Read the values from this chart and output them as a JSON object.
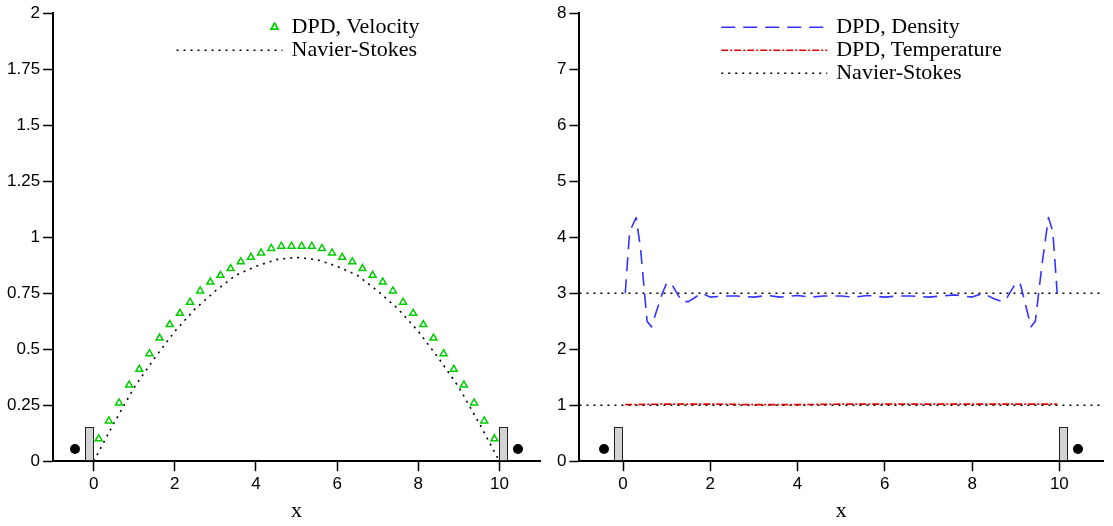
{
  "chart_data": [
    {
      "type": "line",
      "xlabel": "x",
      "xlim": [
        -1,
        11
      ],
      "xticks": [
        0,
        2,
        4,
        6,
        8,
        10
      ],
      "ylim": [
        0,
        2
      ],
      "yticks": [
        0,
        0.25,
        0.5,
        0.75,
        1,
        1.25,
        1.5,
        1.75,
        2
      ],
      "grid": false,
      "legend": "top",
      "series": [
        {
          "name": "DPD, Velocity",
          "type": "scatter",
          "marker": "triangle",
          "color": "#00cc00",
          "x": [
            0.125,
            0.375,
            0.625,
            0.875,
            1.125,
            1.375,
            1.625,
            1.875,
            2.125,
            2.375,
            2.625,
            2.875,
            3.125,
            3.375,
            3.625,
            3.875,
            4.125,
            4.375,
            4.625,
            4.875,
            5.125,
            5.375,
            5.625,
            5.875,
            6.125,
            6.375,
            6.625,
            6.875,
            7.125,
            7.375,
            7.625,
            7.875,
            8.125,
            8.375,
            8.625,
            8.875,
            9.125,
            9.375,
            9.625,
            9.875
          ],
          "values": [
            0.1,
            0.18,
            0.26,
            0.34,
            0.41,
            0.48,
            0.55,
            0.61,
            0.66,
            0.71,
            0.76,
            0.8,
            0.83,
            0.86,
            0.89,
            0.91,
            0.93,
            0.95,
            0.96,
            0.96,
            0.96,
            0.96,
            0.95,
            0.93,
            0.91,
            0.89,
            0.86,
            0.83,
            0.8,
            0.76,
            0.71,
            0.66,
            0.61,
            0.55,
            0.48,
            0.41,
            0.34,
            0.26,
            0.18,
            0.1
          ]
        },
        {
          "name": "Navier-Stokes",
          "type": "line",
          "line_style": "dotted",
          "color": "#000000",
          "x": [
            0,
            0.5,
            1,
            1.5,
            2,
            2.5,
            3,
            3.5,
            4,
            4.5,
            5,
            5.5,
            6,
            6.5,
            7,
            7.5,
            8,
            8.5,
            9,
            9.5,
            10
          ],
          "values": [
            0,
            0.17,
            0.33,
            0.46,
            0.58,
            0.68,
            0.76,
            0.83,
            0.87,
            0.9,
            0.91,
            0.9,
            0.87,
            0.83,
            0.76,
            0.68,
            0.58,
            0.46,
            0.33,
            0.17,
            0
          ]
        }
      ]
    },
    {
      "type": "line",
      "xlabel": "x",
      "xlim": [
        -1,
        11
      ],
      "xticks": [
        0,
        2,
        4,
        6,
        8,
        10
      ],
      "ylim": [
        0,
        8
      ],
      "yticks": [
        0,
        1,
        2,
        3,
        4,
        5,
        6,
        7,
        8
      ],
      "grid": false,
      "legend": "top",
      "series": [
        {
          "name": "DPD, Density",
          "type": "line",
          "line_style": "dashed",
          "color": "#3333ff",
          "x": [
            0.05,
            0.15,
            0.3,
            0.4,
            0.55,
            0.65,
            0.9,
            1.0,
            1.1,
            1.35,
            1.5,
            1.8,
            2.0,
            2.3,
            2.6,
            3.0,
            3.3,
            3.6,
            4.0,
            4.3,
            4.6,
            5.0,
            5.3,
            5.6,
            6.0,
            6.3,
            6.6,
            7.0,
            7.3,
            7.6,
            8.0,
            8.25,
            8.5,
            8.7,
            8.8,
            9.0,
            9.1,
            9.35,
            9.45,
            9.6,
            9.75,
            9.85,
            9.95
          ],
          "values": [
            3.0,
            4.1,
            4.35,
            3.8,
            2.5,
            2.4,
            3.0,
            3.18,
            3.18,
            2.85,
            2.85,
            3.0,
            2.93,
            2.95,
            2.95,
            2.93,
            2.96,
            2.93,
            2.96,
            2.93,
            2.95,
            2.95,
            2.93,
            2.96,
            2.93,
            2.95,
            2.95,
            2.93,
            2.95,
            2.97,
            2.93,
            3.0,
            2.9,
            2.85,
            2.92,
            3.18,
            3.18,
            2.4,
            2.5,
            3.5,
            4.35,
            4.1,
            3.0
          ]
        },
        {
          "name": "DPD, Temperature",
          "type": "line",
          "line_style": "dashdot",
          "color": "#dd0000",
          "x": [
            0.05,
            1,
            2,
            3,
            4,
            5,
            6,
            7,
            8,
            9,
            9.95
          ],
          "values": [
            1.01,
            1.02,
            1.02,
            1.01,
            1.01,
            1.02,
            1.02,
            1.02,
            1.02,
            1.02,
            1.02
          ]
        },
        {
          "name": "Navier-Stokes",
          "type": "line",
          "line_style": "dotted",
          "color": "#000000",
          "x": [
            -1,
            11
          ],
          "values": [
            3,
            3
          ]
        },
        {
          "type": "line",
          "line_style": "dotted",
          "color": "#000000",
          "x": [
            -1,
            11
          ],
          "values": [
            1,
            1
          ]
        }
      ]
    }
  ]
}
